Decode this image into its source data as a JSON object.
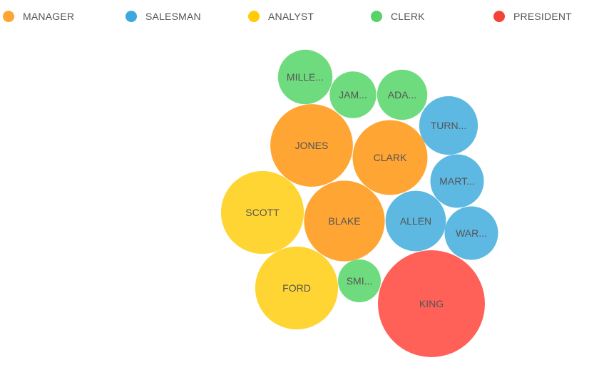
{
  "chart_data": {
    "type": "bubble",
    "legend": {
      "position": "top",
      "items": [
        {
          "key": "MANAGER",
          "label": "MANAGER",
          "color": "#FFA534"
        },
        {
          "key": "SALESMAN",
          "label": "SALESMAN",
          "color": "#3CA8DD"
        },
        {
          "key": "ANALYST",
          "label": "ANALYST",
          "color": "#FFCC05"
        },
        {
          "key": "CLERK",
          "label": "CLERK",
          "color": "#57D36A"
        },
        {
          "key": "PRESIDENT",
          "label": "PRESIDENT",
          "color": "#F44336"
        }
      ]
    },
    "bubble_colors": {
      "MANAGER": "#FFA534",
      "SALESMAN": "#5DB8E2",
      "ANALYST": "#FFD533",
      "CLERK": "#6EDC7E",
      "PRESIDENT": "#FF6159"
    },
    "bubbles": [
      {
        "label": "MILLE...",
        "category": "CLERK",
        "value": 1300
      },
      {
        "label": "JAM...",
        "category": "CLERK",
        "value": 950
      },
      {
        "label": "ADA...",
        "category": "CLERK",
        "value": 1100
      },
      {
        "label": "TURN...",
        "category": "SALESMAN",
        "value": 1500
      },
      {
        "label": "JONES",
        "category": "MANAGER",
        "value": 2975
      },
      {
        "label": "CLARK",
        "category": "MANAGER",
        "value": 2450
      },
      {
        "label": "MART...",
        "category": "SALESMAN",
        "value": 1250
      },
      {
        "label": "SCOTT",
        "category": "ANALYST",
        "value": 3000
      },
      {
        "label": "BLAKE",
        "category": "MANAGER",
        "value": 2850
      },
      {
        "label": "ALLEN",
        "category": "SALESMAN",
        "value": 1600
      },
      {
        "label": "WAR...",
        "category": "SALESMAN",
        "value": 1250
      },
      {
        "label": "FORD",
        "category": "ANALYST",
        "value": 3000
      },
      {
        "label": "SMI...",
        "category": "CLERK",
        "value": 800
      },
      {
        "label": "KING",
        "category": "PRESIDENT",
        "value": 5000
      }
    ]
  }
}
